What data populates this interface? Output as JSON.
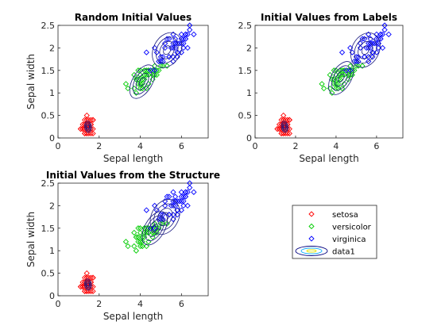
{
  "figure": {
    "background": "#ffffff",
    "series_colors": [
      "#ff0000",
      "#00cc00",
      "#0000ff"
    ],
    "legend": {
      "entries": [
        "setosa",
        "versicolor",
        "virginica",
        "data1"
      ],
      "marker": "diamond-open",
      "contour_entry_colors": [
        "#00007f",
        "#00aaff",
        "#e6e600"
      ]
    }
  },
  "chart_data": [
    {
      "type": "scatter",
      "title": "Random Initial Values",
      "xlabel": "Sepal length",
      "ylabel": "Sepal width",
      "xlim": [
        0,
        7.3
      ],
      "ylim": [
        0,
        2.5
      ],
      "xticks": [
        0,
        2,
        4,
        6
      ],
      "yticks": [
        0,
        0.5,
        1,
        1.5,
        2,
        2.5
      ],
      "ytick_labels": [
        "0",
        "0.5",
        "1",
        "1.5",
        "2",
        "2.5"
      ],
      "grid": false,
      "overlay": "gaussian-mixture-contours",
      "clusters": [
        {
          "name": "setosa",
          "x_mean": 1.46,
          "y_mean": 0.25,
          "points": 50
        },
        {
          "name": "versicolor",
          "x_mean": 4.26,
          "y_mean": 1.33,
          "points": 50
        },
        {
          "name": "virginica",
          "x_mean": 5.55,
          "y_mean": 2.03,
          "points": 50
        }
      ],
      "contour_centers": [
        [
          1.46,
          0.25
        ],
        [
          4.1,
          1.25
        ],
        [
          5.3,
          1.95
        ]
      ]
    },
    {
      "type": "scatter",
      "title": "Initial Values from Labels",
      "xlabel": "Sepal length",
      "ylabel": "",
      "xlim": [
        0,
        7.3
      ],
      "ylim": [
        0,
        2.5
      ],
      "xticks": [
        0,
        2,
        4,
        6
      ],
      "yticks": [
        0,
        0.5,
        1,
        1.5,
        2,
        2.5
      ],
      "ytick_labels": [
        "0",
        "0.5",
        "1",
        "1.5",
        "2",
        "2.5"
      ],
      "grid": false,
      "overlay": "gaussian-mixture-contours",
      "clusters": [
        {
          "name": "setosa",
          "x_mean": 1.46,
          "y_mean": 0.25,
          "points": 50
        },
        {
          "name": "versicolor",
          "x_mean": 4.26,
          "y_mean": 1.33,
          "points": 50
        },
        {
          "name": "virginica",
          "x_mean": 5.55,
          "y_mean": 2.03,
          "points": 50
        }
      ],
      "contour_centers": [
        [
          1.46,
          0.25
        ],
        [
          4.25,
          1.33
        ],
        [
          5.45,
          1.95
        ]
      ]
    },
    {
      "type": "scatter",
      "title": "Initial Values from the Structure",
      "xlabel": "Sepal length",
      "ylabel": "Sepal width",
      "xlim": [
        0,
        7.3
      ],
      "ylim": [
        0,
        2.5
      ],
      "xticks": [
        0,
        2,
        4,
        6
      ],
      "yticks": [
        0,
        0.5,
        1,
        1.5,
        2,
        2.5
      ],
      "ytick_labels": [
        "0",
        "0.5",
        "1",
        "1.5",
        "2",
        "2.5"
      ],
      "grid": false,
      "overlay": "gaussian-mixture-contours",
      "clusters": [
        {
          "name": "setosa",
          "x_mean": 1.46,
          "y_mean": 0.25,
          "points": 50
        },
        {
          "name": "versicolor",
          "x_mean": 4.26,
          "y_mean": 1.33,
          "points": 50
        },
        {
          "name": "virginica",
          "x_mean": 5.55,
          "y_mean": 2.03,
          "points": 50
        }
      ],
      "contour_centers": [
        [
          1.46,
          0.25
        ],
        [
          4.7,
          1.5
        ],
        [
          5.2,
          1.75
        ]
      ]
    }
  ]
}
